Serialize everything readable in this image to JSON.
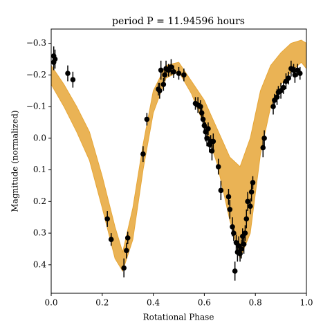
{
  "chart_data": {
    "type": "scatter",
    "title": "period P = 11.94596 hours",
    "xlabel": "Rotational Phase",
    "ylabel": "Magnitude (normalized)",
    "xlim": [
      0,
      1
    ],
    "ylim": [
      0.49,
      -0.345
    ],
    "xticks": [
      {
        "value": 0,
        "label": "0.0"
      },
      {
        "value": 0.2,
        "label": "0.2"
      },
      {
        "value": 0.4,
        "label": "0.4"
      },
      {
        "value": 0.6,
        "label": "0.6"
      },
      {
        "value": 0.8,
        "label": "0.8"
      },
      {
        "value": 1,
        "label": "1.0"
      }
    ],
    "yticks": [
      {
        "value": -0.3,
        "label": "−0.3"
      },
      {
        "value": -0.2,
        "label": "−0.2"
      },
      {
        "value": -0.1,
        "label": "−0.1"
      },
      {
        "value": 0,
        "label": "0.0"
      },
      {
        "value": 0.1,
        "label": "0.1"
      },
      {
        "value": 0.2,
        "label": "0.2"
      },
      {
        "value": 0.3,
        "label": "0.3"
      },
      {
        "value": 0.4,
        "label": "0.4"
      }
    ],
    "model_band": {
      "color": "#e6a637",
      "x": [
        0,
        0.05,
        0.1,
        0.15,
        0.2,
        0.25,
        0.28,
        0.32,
        0.36,
        0.4,
        0.45,
        0.5,
        0.55,
        0.6,
        0.65,
        0.7,
        0.74,
        0.78,
        0.82,
        0.86,
        0.9,
        0.94,
        0.98,
        1.0
      ],
      "min": [
        -0.23,
        -0.17,
        -0.1,
        -0.02,
        0.12,
        0.28,
        0.36,
        0.22,
        0.02,
        -0.15,
        -0.23,
        -0.24,
        -0.18,
        -0.12,
        -0.03,
        0.06,
        0.09,
        0.0,
        -0.15,
        -0.23,
        -0.27,
        -0.3,
        -0.31,
        -0.3
      ],
      "max": [
        -0.17,
        -0.1,
        -0.02,
        0.07,
        0.22,
        0.38,
        0.42,
        0.32,
        0.1,
        -0.08,
        -0.19,
        -0.21,
        -0.14,
        -0.04,
        0.08,
        0.26,
        0.38,
        0.3,
        0.05,
        -0.1,
        -0.17,
        -0.21,
        -0.24,
        -0.22
      ]
    },
    "series": [
      {
        "color": "#000000",
        "x": [
          0.01,
          0.015,
          0.01,
          0.065,
          0.085,
          0.22,
          0.235,
          0.285,
          0.295,
          0.3,
          0.36,
          0.375,
          0.42,
          0.425,
          0.43,
          0.44,
          0.445,
          0.45,
          0.46,
          0.47,
          0.48,
          0.5,
          0.52,
          0.565,
          0.575,
          0.585,
          0.59,
          0.595,
          0.6,
          0.605,
          0.61,
          0.615,
          0.62,
          0.625,
          0.63,
          0.635,
          0.655,
          0.665,
          0.695,
          0.7,
          0.71,
          0.715,
          0.72,
          0.725,
          0.73,
          0.735,
          0.74,
          0.745,
          0.75,
          0.755,
          0.76,
          0.765,
          0.77,
          0.78,
          0.785,
          0.79,
          0.83,
          0.835,
          0.87,
          0.875,
          0.885,
          0.89,
          0.9,
          0.91,
          0.92,
          0.93,
          0.94,
          0.95,
          0.955,
          0.965,
          0.975
        ],
        "values": [
          -0.26,
          -0.25,
          -0.24,
          -0.205,
          -0.185,
          0.255,
          0.32,
          0.41,
          0.355,
          0.315,
          0.05,
          -0.06,
          -0.155,
          -0.15,
          -0.215,
          -0.17,
          -0.2,
          -0.22,
          -0.215,
          -0.225,
          -0.21,
          -0.205,
          -0.2,
          -0.11,
          -0.105,
          -0.1,
          -0.08,
          -0.06,
          -0.04,
          -0.02,
          0.0,
          -0.03,
          0.02,
          0.01,
          0.04,
          0.01,
          0.09,
          0.165,
          0.185,
          0.225,
          0.28,
          0.3,
          0.42,
          0.33,
          0.36,
          0.34,
          0.365,
          0.35,
          0.31,
          0.335,
          0.3,
          0.255,
          0.2,
          0.215,
          0.17,
          0.14,
          0.03,
          0.0,
          -0.1,
          -0.12,
          -0.13,
          -0.145,
          -0.15,
          -0.16,
          -0.18,
          -0.19,
          -0.22,
          -0.215,
          -0.2,
          -0.215,
          -0.205
        ],
        "errors": [
          0.03,
          0.03,
          0.025,
          0.025,
          0.025,
          0.025,
          0.02,
          0.03,
          0.025,
          0.02,
          0.025,
          0.02,
          0.02,
          0.025,
          0.03,
          0.02,
          0.02,
          0.025,
          0.02,
          0.025,
          0.02,
          0.02,
          0.02,
          0.02,
          0.025,
          0.02,
          0.025,
          0.025,
          0.025,
          0.03,
          0.025,
          0.02,
          0.025,
          0.02,
          0.03,
          0.025,
          0.025,
          0.03,
          0.025,
          0.03,
          0.03,
          0.025,
          0.03,
          0.025,
          0.03,
          0.03,
          0.025,
          0.03,
          0.025,
          0.03,
          0.025,
          0.03,
          0.03,
          0.025,
          0.03,
          0.02,
          0.03,
          0.025,
          0.025,
          0.02,
          0.025,
          0.02,
          0.025,
          0.02,
          0.025,
          0.02,
          0.025,
          0.02,
          0.025,
          0.02,
          0.02
        ]
      }
    ]
  }
}
